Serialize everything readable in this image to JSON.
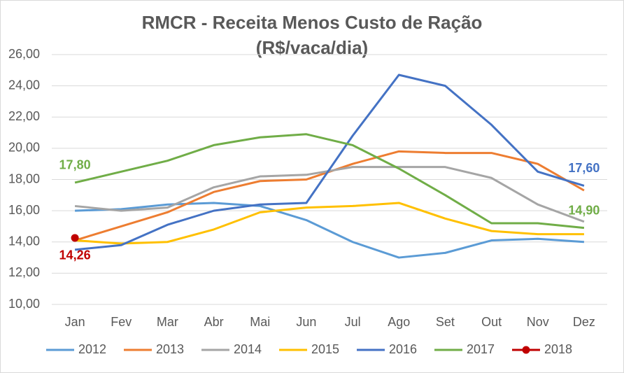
{
  "chart_data": {
    "type": "line",
    "title": "RMCR - Receita Menos Custo de Ração",
    "subtitle": "(R$/vaca/dia)",
    "categories": [
      "Jan",
      "Fev",
      "Mar",
      "Abr",
      "Mai",
      "Jun",
      "Jul",
      "Ago",
      "Set",
      "Out",
      "Nov",
      "Dez"
    ],
    "ylim": [
      10,
      26
    ],
    "yticks": [
      {
        "value": 10,
        "label": "10,00"
      },
      {
        "value": 12,
        "label": "12,00"
      },
      {
        "value": 14,
        "label": "14,00"
      },
      {
        "value": 16,
        "label": "16,00"
      },
      {
        "value": 18,
        "label": "18,00"
      },
      {
        "value": 20,
        "label": "20,00"
      },
      {
        "value": 22,
        "label": "22,00"
      },
      {
        "value": 24,
        "label": "24,00"
      },
      {
        "value": 26,
        "label": "26,00"
      }
    ],
    "grid": true,
    "legend": "bottom",
    "series": [
      {
        "name": "2012",
        "color": "#5b9bd5",
        "values": [
          16.0,
          16.1,
          16.4,
          16.5,
          16.3,
          15.4,
          14.0,
          13.0,
          13.3,
          14.1,
          14.2,
          14.0
        ]
      },
      {
        "name": "2013",
        "color": "#ed7d31",
        "values": [
          14.1,
          15.0,
          15.9,
          17.2,
          17.9,
          18.0,
          19.0,
          19.8,
          19.7,
          19.7,
          19.0,
          17.3
        ]
      },
      {
        "name": "2014",
        "color": "#a5a5a5",
        "values": [
          16.3,
          16.0,
          16.2,
          17.5,
          18.2,
          18.3,
          18.8,
          18.8,
          18.8,
          18.1,
          16.4,
          15.3
        ]
      },
      {
        "name": "2015",
        "color": "#ffc000",
        "values": [
          14.1,
          13.9,
          14.0,
          14.8,
          15.9,
          16.2,
          16.3,
          16.5,
          15.5,
          14.7,
          14.5,
          14.5
        ]
      },
      {
        "name": "2016",
        "color": "#4472c4",
        "values": [
          13.5,
          13.8,
          15.1,
          16.0,
          16.4,
          16.5,
          20.8,
          24.7,
          24.0,
          21.5,
          18.5,
          17.6
        ],
        "value_labels": [
          null,
          null,
          null,
          null,
          null,
          null,
          null,
          null,
          null,
          null,
          null,
          "17,60"
        ]
      },
      {
        "name": "2017",
        "color": "#70ad47",
        "values": [
          17.8,
          18.5,
          19.2,
          20.2,
          20.7,
          20.9,
          20.2,
          18.7,
          17.0,
          15.2,
          15.2,
          14.9
        ],
        "value_labels": [
          "17,80",
          null,
          null,
          null,
          null,
          null,
          null,
          null,
          null,
          null,
          null,
          "14,90"
        ]
      },
      {
        "name": "2018",
        "color": "#c00000",
        "marker": true,
        "values": [
          14.26,
          null,
          null,
          null,
          null,
          null,
          null,
          null,
          null,
          null,
          null,
          null
        ],
        "value_labels": [
          "14,26",
          null,
          null,
          null,
          null,
          null,
          null,
          null,
          null,
          null,
          null,
          null
        ]
      }
    ]
  }
}
